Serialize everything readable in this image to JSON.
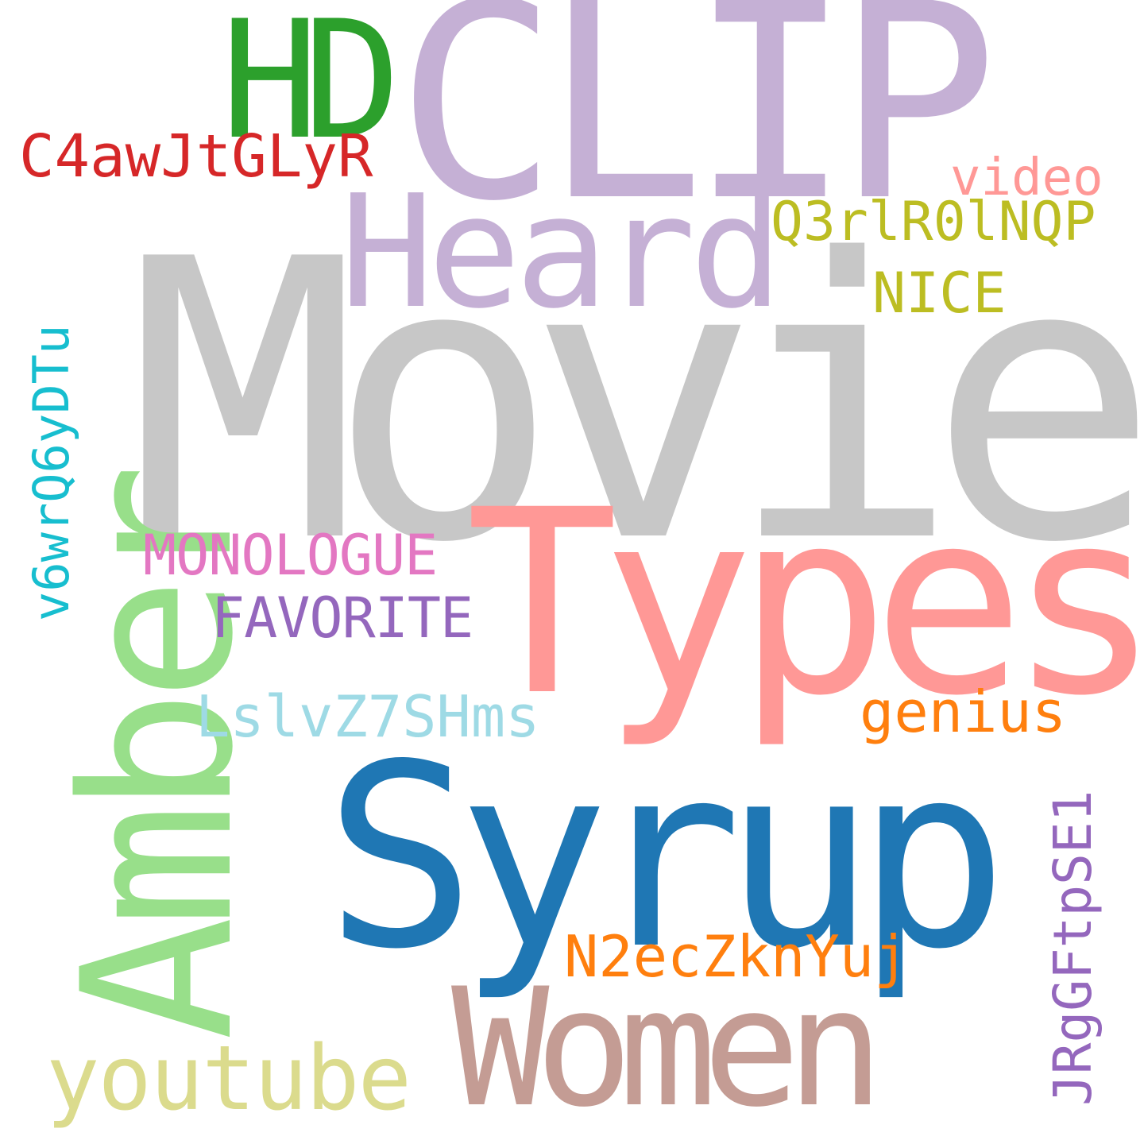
{
  "words": [
    {
      "text": "Movie",
      "color": "#c7c7c7"
    },
    {
      "text": "CLIP",
      "color": "#c5b0d5"
    },
    {
      "text": "HD",
      "color": "#2ca02c"
    },
    {
      "text": "Heard",
      "color": "#c5b0d5"
    },
    {
      "text": "Types",
      "color": "#ff9896"
    },
    {
      "text": "Syrup",
      "color": "#1f77b4"
    },
    {
      "text": "Women",
      "color": "#c49c94"
    },
    {
      "text": "Amber",
      "color": "#98df8a"
    },
    {
      "text": "youtube",
      "color": "#dbdb8d"
    },
    {
      "text": "C4awJtGLyR",
      "color": "#d62728"
    },
    {
      "text": "video",
      "color": "#ff9896"
    },
    {
      "text": "Q3rlR0lNQP",
      "color": "#bcbd22"
    },
    {
      "text": "NICE",
      "color": "#bcbd22"
    },
    {
      "text": "MONOLOGUE",
      "color": "#e377c2"
    },
    {
      "text": "FAVORITE",
      "color": "#9467bd"
    },
    {
      "text": "LslvZ7SHms",
      "color": "#9edae5"
    },
    {
      "text": "genius",
      "color": "#ff7f0e"
    },
    {
      "text": "N2ecZknYuj",
      "color": "#ff7f0e"
    },
    {
      "text": "v6wrQ6yDTu",
      "color": "#17becf"
    },
    {
      "text": "JRgGFtpSE1",
      "color": "#9467bd"
    }
  ]
}
